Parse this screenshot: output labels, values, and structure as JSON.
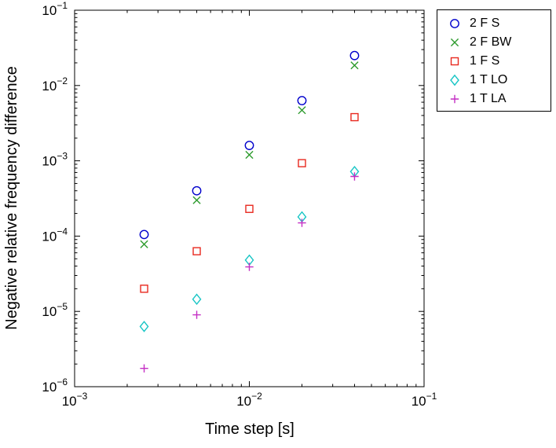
{
  "chart_data": {
    "type": "scatter",
    "title": "",
    "xlabel": "Time step [s]",
    "ylabel": "Negative relative frequency difference",
    "xscale": "log",
    "yscale": "log",
    "xlim": [
      0.001,
      0.1
    ],
    "ylim": [
      1e-06,
      0.1
    ],
    "grid": false,
    "legend_position": "top-right-outside",
    "x": [
      0.0025,
      0.005,
      0.01,
      0.02,
      0.04
    ],
    "series": [
      {
        "name": "2 F S",
        "marker": "circle",
        "color": "#0000cc",
        "values": [
          0.000105,
          0.0004,
          0.0016,
          0.0063,
          0.025
        ]
      },
      {
        "name": "2 F BW",
        "marker": "x",
        "color": "#2e9b2e",
        "values": [
          7.8e-05,
          0.0003,
          0.0012,
          0.0047,
          0.0185
        ]
      },
      {
        "name": "1 F S",
        "marker": "square",
        "color": "#e8291f",
        "values": [
          2e-05,
          6.3e-05,
          0.00023,
          0.00093,
          0.0038
        ]
      },
      {
        "name": "1 T LO",
        "marker": "diamond",
        "color": "#18c5c5",
        "values": [
          6.3e-06,
          1.45e-05,
          4.8e-05,
          0.00018,
          0.00072
        ]
      },
      {
        "name": "1 T LA",
        "marker": "plus",
        "color": "#c42fc4",
        "values": [
          1.75e-06,
          9e-06,
          3.9e-05,
          0.00015,
          0.00062
        ]
      }
    ],
    "x_tick_labels": [
      "10^-3",
      "10^-2",
      "10^-1"
    ],
    "y_tick_labels": [
      "10^-6",
      "10^-5",
      "10^-4",
      "10^-3",
      "10^-2",
      "10^-1"
    ]
  }
}
